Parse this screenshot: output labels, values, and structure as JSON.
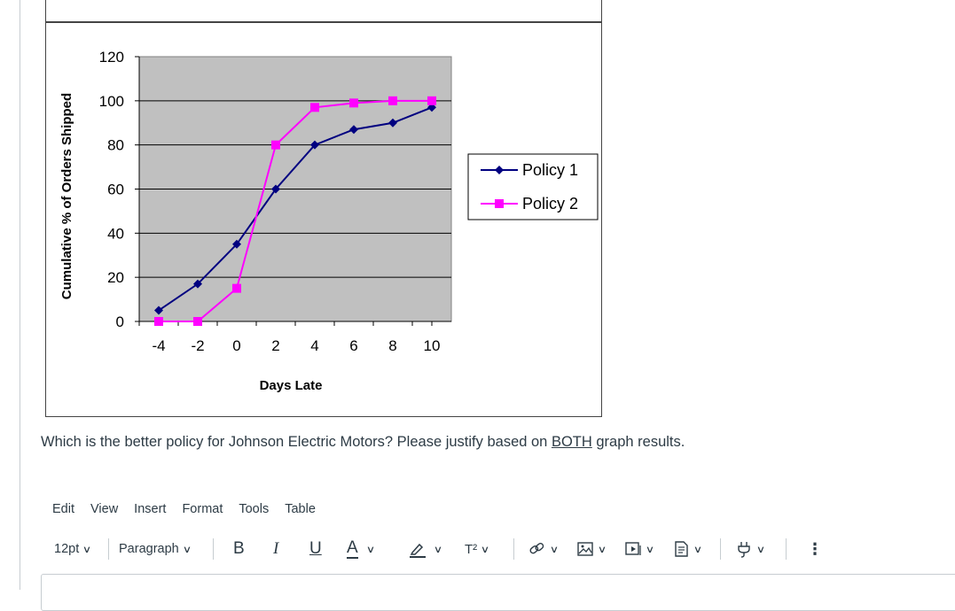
{
  "question": {
    "prefix": "Which is the better policy for Johnson Electric Motors?  Please justify based on ",
    "emphasis": "BOTH",
    "suffix": " graph results."
  },
  "editor": {
    "menu": [
      "Edit",
      "View",
      "Insert",
      "Format",
      "Tools",
      "Table"
    ],
    "font_size": "12pt",
    "block_format": "Paragraph",
    "bold_label": "B",
    "italic_label": "I",
    "underline_label": "U",
    "text_color_label": "A",
    "superscript_label": "T²",
    "more_label": "⋮",
    "icons": [
      "link-icon",
      "image-icon",
      "media-icon",
      "document-icon",
      "plug-icon",
      "highlight-icon"
    ]
  },
  "chart_data": {
    "type": "line",
    "xlabel": "Days Late",
    "ylabel": "Cumulative % of Orders Shipped",
    "xlim": [
      -5,
      11
    ],
    "ylim": [
      0,
      120
    ],
    "x_ticks": [
      "-4",
      "-2",
      "0",
      "2",
      "4",
      "6",
      "8",
      "10"
    ],
    "y_ticks": [
      "0",
      "20",
      "40",
      "60",
      "80",
      "100",
      "120"
    ],
    "grid": true,
    "legend_position": "right",
    "series": [
      {
        "name": "Policy 1",
        "color": "#000080",
        "marker": "diamond",
        "x": [
          -4,
          -2,
          0,
          2,
          4,
          6,
          8,
          10
        ],
        "y": [
          5,
          17,
          35,
          60,
          80,
          87,
          90,
          97
        ]
      },
      {
        "name": "Policy 2",
        "color": "#ff00ff",
        "marker": "square",
        "x": [
          -4,
          -2,
          0,
          2,
          4,
          6,
          8,
          10
        ],
        "y": [
          0,
          0,
          15,
          80,
          97,
          99,
          100,
          100
        ]
      }
    ]
  }
}
